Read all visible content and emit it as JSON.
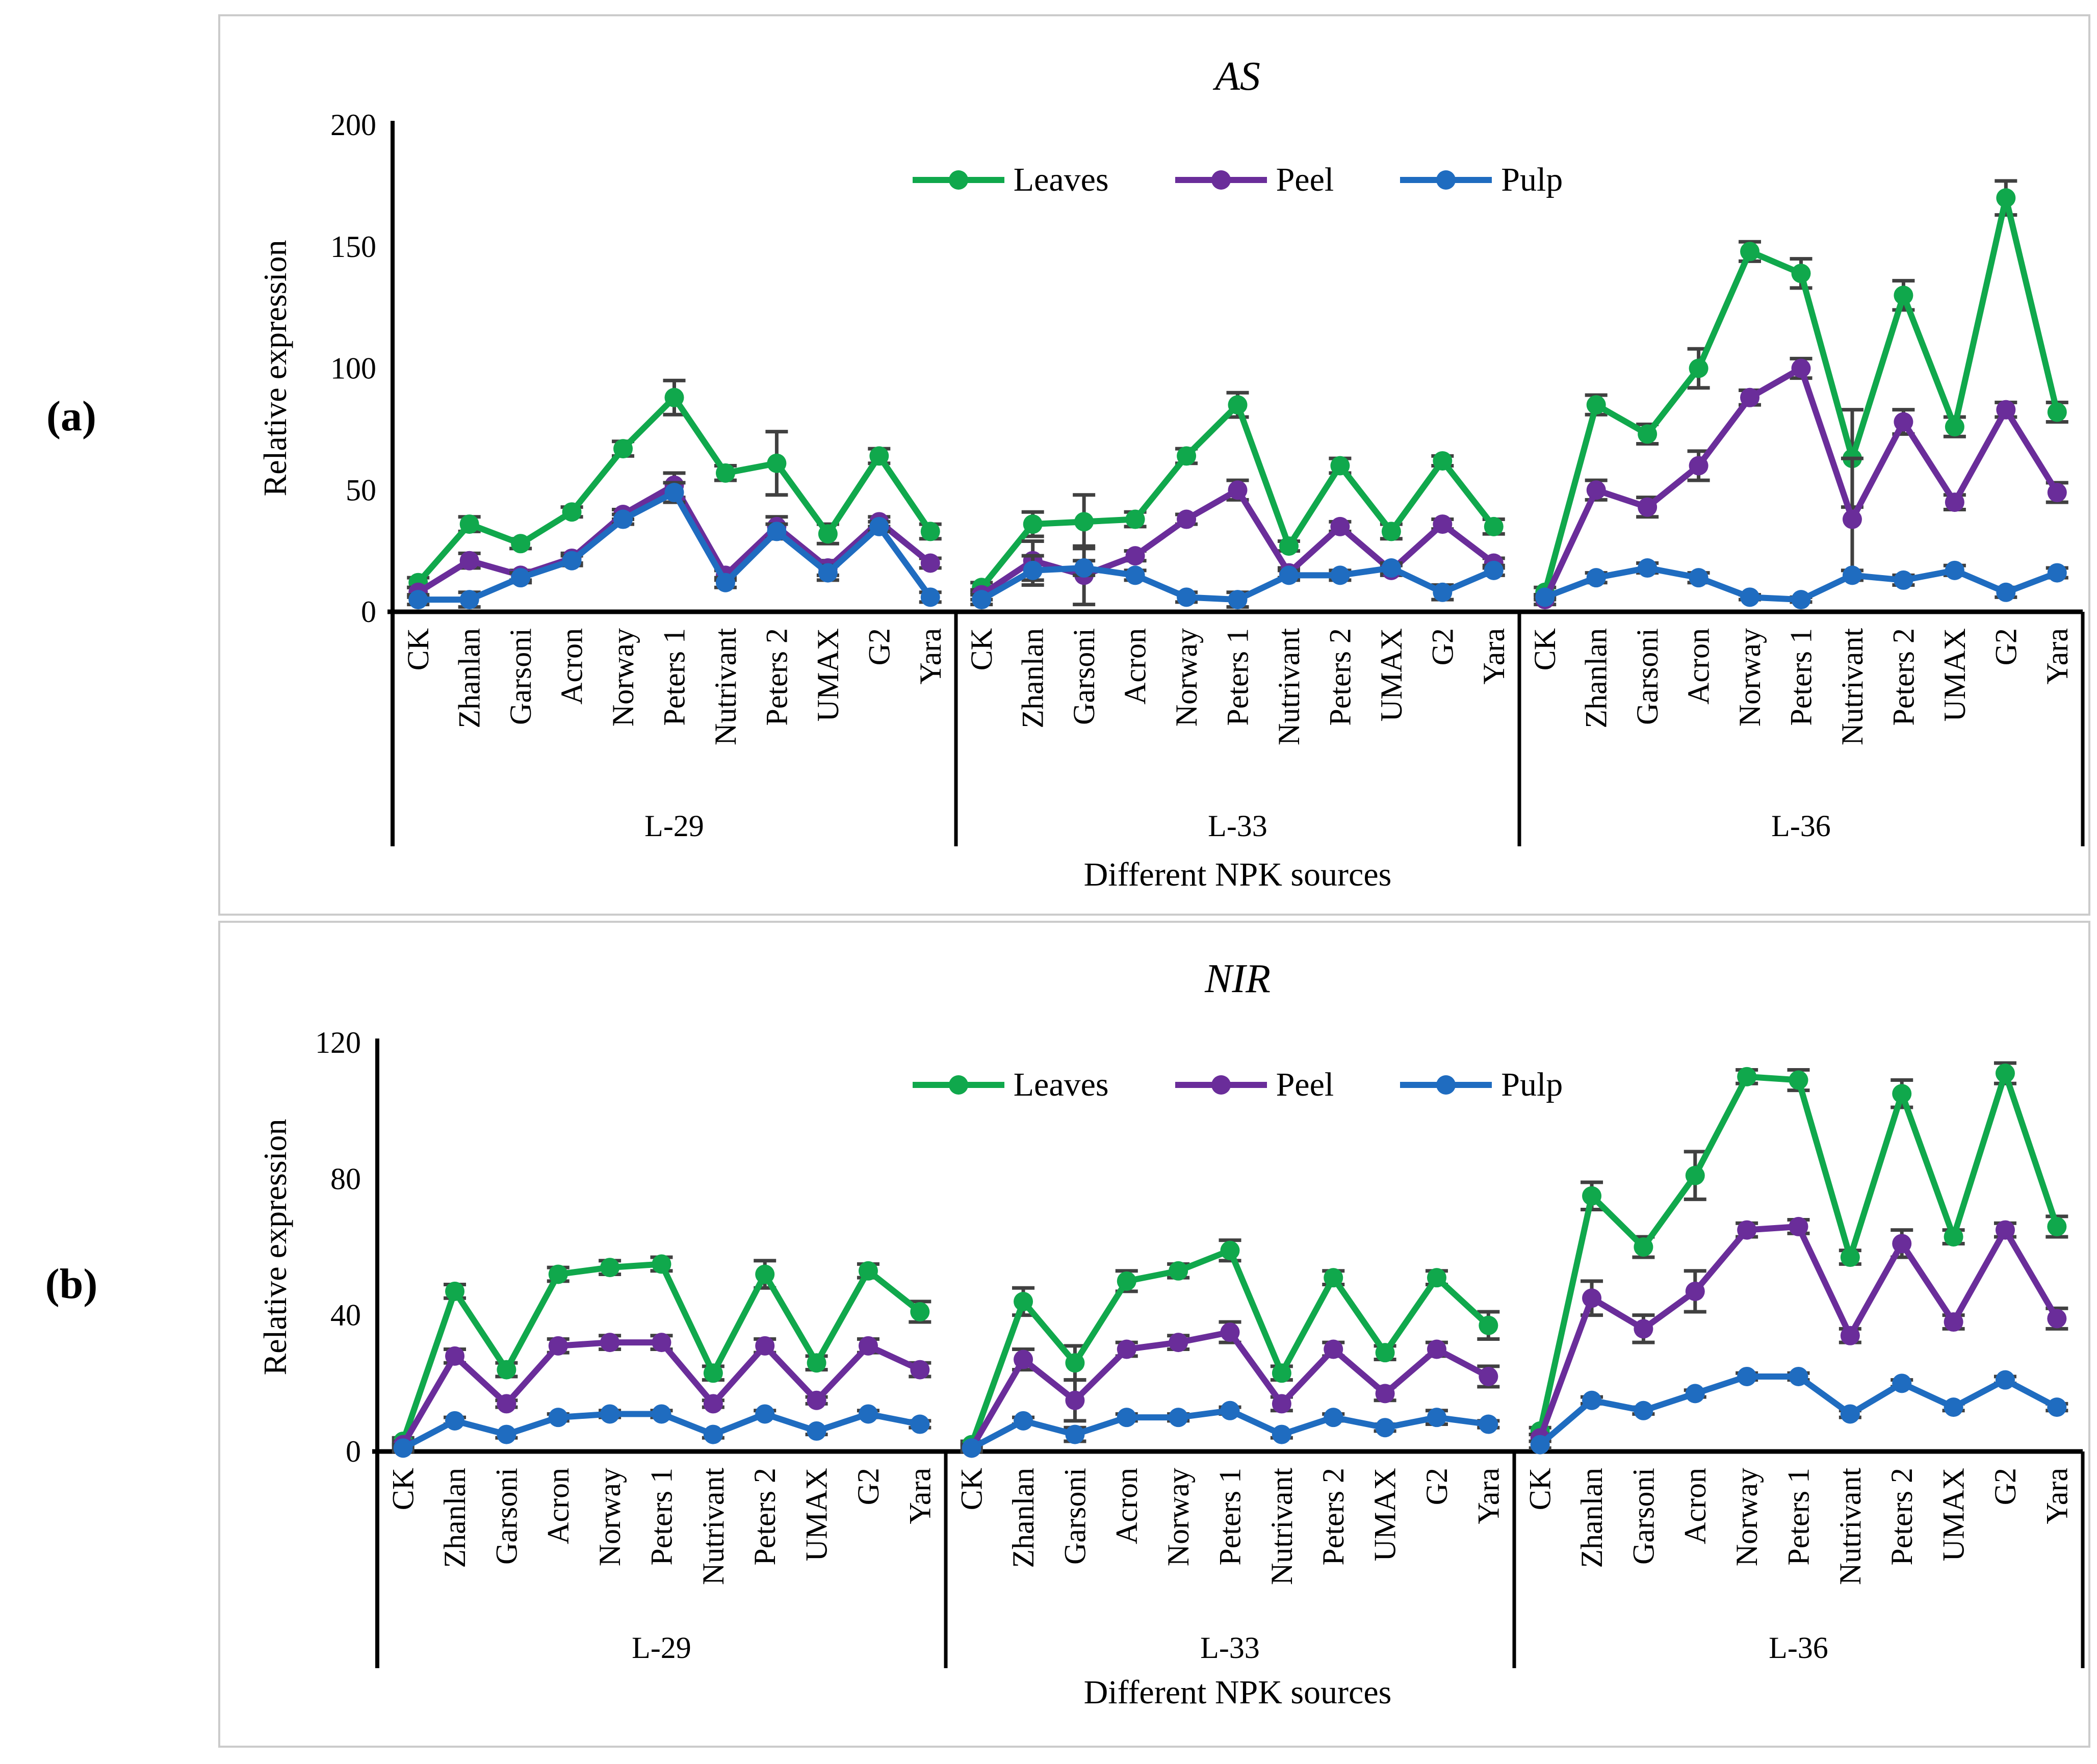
{
  "figure_labels": {
    "a": "(a)",
    "b": "(b)"
  },
  "colors": {
    "leaves": "#10A84C",
    "peel": "#6A2D9A",
    "pulp": "#1F6CC0",
    "error_bar": "#404040",
    "axis": "#000000",
    "panel_border": "#cbcbcb"
  },
  "chart_data": [
    {
      "type": "line",
      "panel": "a",
      "title": "AS",
      "ylabel": "Relative expression",
      "xlabel": "Different NPK sources",
      "ylim": [
        0,
        200
      ],
      "yticks": [
        0,
        50,
        100,
        150,
        200
      ],
      "legend_position": "top-center",
      "grid": false,
      "series_names": [
        "Leaves",
        "Peel",
        "Pulp"
      ],
      "categories": [
        "CK",
        "Zhanlan",
        "Garsoni",
        "Acron",
        "Norway",
        "Peters 1",
        "Nutrivant",
        "Peters 2",
        "UMAX",
        "G2",
        "Yara"
      ],
      "groups": [
        {
          "label": "L-29",
          "series": [
            {
              "name": "Leaves",
              "values": [
                12,
                36,
                28,
                41,
                67,
                88,
                57,
                61,
                32,
                64,
                33
              ],
              "errors": [
                2,
                3,
                2,
                2,
                3,
                7,
                3,
                13,
                4,
                3,
                3
              ]
            },
            {
              "name": "Peel",
              "values": [
                8,
                21,
                15,
                22,
                40,
                52,
                15,
                35,
                18,
                37,
                20
              ],
              "errors": [
                2,
                3,
                2,
                2,
                2,
                5,
                2,
                4,
                3,
                2,
                2
              ]
            },
            {
              "name": "Pulp",
              "values": [
                5,
                5,
                14,
                21,
                38,
                49,
                12,
                33,
                16,
                35,
                6
              ],
              "errors": [
                2,
                3,
                2,
                2,
                2,
                4,
                2,
                3,
                3,
                2,
                2
              ]
            }
          ]
        },
        {
          "label": "L-33",
          "series": [
            {
              "name": "Leaves",
              "values": [
                10,
                36,
                37,
                38,
                64,
                85,
                27,
                60,
                33,
                62,
                35
              ],
              "errors": [
                2,
                5,
                11,
                3,
                3,
                5,
                2,
                3,
                3,
                2,
                3
              ]
            },
            {
              "name": "Peel",
              "values": [
                7,
                21,
                15,
                23,
                38,
                50,
                16,
                35,
                17,
                36,
                20
              ],
              "errors": [
                2,
                8,
                12,
                2,
                2,
                4,
                2,
                2,
                2,
                2,
                2
              ]
            },
            {
              "name": "Pulp",
              "values": [
                5,
                17,
                18,
                15,
                6,
                5,
                15,
                15,
                18,
                8,
                17
              ],
              "errors": [
                2,
                6,
                3,
                2,
                2,
                3,
                2,
                2,
                2,
                3,
                2
              ]
            }
          ]
        },
        {
          "label": "L-36",
          "series": [
            {
              "name": "Leaves",
              "values": [
                8,
                85,
                73,
                100,
                148,
                139,
                63,
                130,
                76,
                170,
                82
              ],
              "errors": [
                2,
                4,
                4,
                8,
                4,
                6,
                20,
                6,
                4,
                7,
                4
              ]
            },
            {
              "name": "Peel",
              "values": [
                5,
                50,
                43,
                60,
                88,
                100,
                38,
                78,
                45,
                83,
                49
              ],
              "errors": [
                2,
                4,
                4,
                6,
                3,
                4,
                25,
                5,
                3,
                3,
                4
              ]
            },
            {
              "name": "Pulp",
              "values": [
                6,
                14,
                18,
                14,
                6,
                5,
                15,
                13,
                17,
                8,
                16
              ],
              "errors": [
                1,
                2,
                2,
                2,
                1,
                1,
                2,
                2,
                2,
                2,
                2
              ]
            }
          ]
        }
      ]
    },
    {
      "type": "line",
      "panel": "b",
      "title": "NIR",
      "ylabel": "Relative expression",
      "xlabel": "Different NPK sources",
      "ylim": [
        0,
        120
      ],
      "yticks": [
        0,
        40,
        80,
        120
      ],
      "legend_position": "top-center",
      "grid": false,
      "series_names": [
        "Leaves",
        "Peel",
        "Pulp"
      ],
      "categories": [
        "CK",
        "Zhanlan",
        "Garsoni",
        "Acron",
        "Norway",
        "Peters 1",
        "Nutrivant",
        "Peters 2",
        "UMAX",
        "G2",
        "Yara"
      ],
      "groups": [
        {
          "label": "L-29",
          "series": [
            {
              "name": "Leaves",
              "values": [
                3,
                47,
                24,
                52,
                54,
                55,
                23,
                52,
                26,
                53,
                41
              ],
              "errors": [
                1,
                2,
                2,
                2,
                2,
                2,
                2,
                4,
                2,
                2,
                3
              ]
            },
            {
              "name": "Peel",
              "values": [
                2,
                28,
                14,
                31,
                32,
                32,
                14,
                31,
                15,
                31,
                24
              ],
              "errors": [
                1,
                2,
                1,
                2,
                2,
                2,
                1,
                2,
                1,
                2,
                2
              ]
            },
            {
              "name": "Pulp",
              "values": [
                1,
                9,
                5,
                10,
                11,
                11,
                5,
                11,
                6,
                11,
                8
              ],
              "errors": [
                1,
                1,
                1,
                1,
                1,
                1,
                1,
                1,
                1,
                1,
                1
              ]
            }
          ]
        },
        {
          "label": "L-33",
          "series": [
            {
              "name": "Leaves",
              "values": [
                2,
                44,
                26,
                50,
                53,
                59,
                23,
                51,
                29,
                51,
                37
              ],
              "errors": [
                1,
                4,
                5,
                3,
                2,
                3,
                2,
                2,
                2,
                2,
                4
              ]
            },
            {
              "name": "Peel",
              "values": [
                1,
                27,
                15,
                30,
                32,
                35,
                14,
                30,
                17,
                30,
                22
              ],
              "errors": [
                1,
                3,
                6,
                2,
                2,
                3,
                2,
                2,
                2,
                2,
                3
              ]
            },
            {
              "name": "Pulp",
              "values": [
                1,
                9,
                5,
                10,
                10,
                12,
                5,
                10,
                7,
                10,
                8
              ],
              "errors": [
                1,
                1,
                2,
                1,
                1,
                1,
                1,
                1,
                1,
                2,
                1
              ]
            }
          ]
        },
        {
          "label": "L-36",
          "series": [
            {
              "name": "Leaves",
              "values": [
                6,
                75,
                60,
                81,
                110,
                109,
                57,
                105,
                63,
                111,
                66
              ],
              "errors": [
                1,
                4,
                3,
                7,
                2,
                3,
                2,
                4,
                2,
                3,
                3
              ]
            },
            {
              "name": "Peel",
              "values": [
                4,
                45,
                36,
                47,
                65,
                66,
                34,
                61,
                38,
                65,
                39
              ],
              "errors": [
                1,
                5,
                4,
                6,
                2,
                2,
                2,
                4,
                2,
                2,
                3
              ]
            },
            {
              "name": "Pulp",
              "values": [
                2,
                15,
                12,
                17,
                22,
                22,
                11,
                20,
                13,
                21,
                13
              ],
              "errors": [
                1,
                1,
                1,
                1,
                1,
                1,
                1,
                1,
                1,
                1,
                1
              ]
            }
          ]
        }
      ]
    }
  ]
}
